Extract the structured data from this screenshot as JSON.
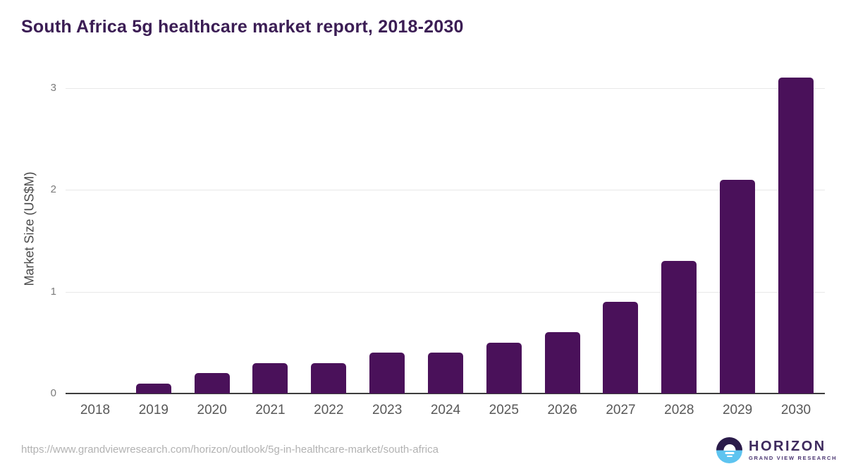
{
  "header": {
    "title": "South Africa 5g healthcare market report, 2018-2030"
  },
  "chart_data": {
    "type": "bar",
    "title": "South Africa 5g healthcare market report, 2018-2030",
    "categories": [
      "2018",
      "2019",
      "2020",
      "2021",
      "2022",
      "2023",
      "2024",
      "2025",
      "2026",
      "2027",
      "2028",
      "2029",
      "2030"
    ],
    "values": [
      0.0,
      0.1,
      0.2,
      0.3,
      0.3,
      0.4,
      0.4,
      0.5,
      0.6,
      0.9,
      1.3,
      2.1,
      3.1
    ],
    "xlabel": "",
    "ylabel": "Market Size (US$M)",
    "ylim": [
      0,
      3.3
    ],
    "yticks": [
      0,
      1,
      2,
      3
    ],
    "grid": "horizontal-light",
    "legend": "none",
    "bar_color": "#4a115a"
  },
  "colors": {
    "title_text": "#3b1d54",
    "bar": "#4a115a",
    "gridline": "#e8e8e8",
    "axis_line": "#3d3d3d",
    "tick_text": "#7b7b7b",
    "category_text": "#585858",
    "url_text": "#b2b2b2",
    "logo_dark": "#2a1b4a",
    "logo_blue": "#5ec4f0"
  },
  "footer": {
    "source_url": "https://www.grandviewresearch.com/horizon/outlook/5g-in-healthcare-market/south-africa",
    "logo": {
      "brand": "HORIZON",
      "sub_brand": "GRAND VIEW RESEARCH"
    }
  }
}
